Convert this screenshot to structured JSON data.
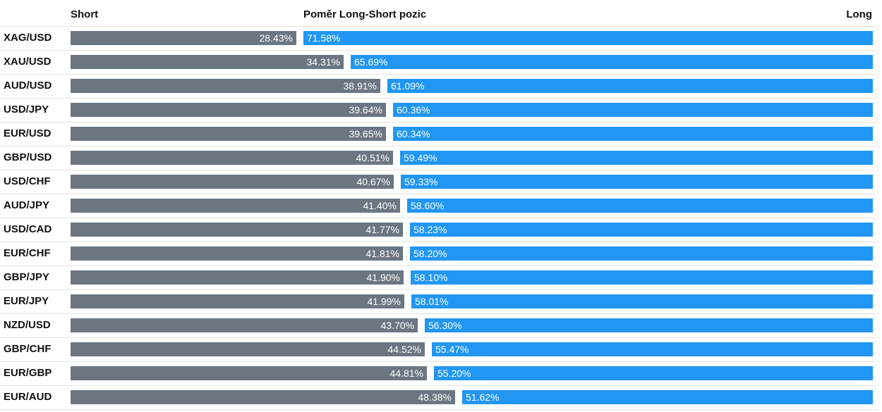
{
  "colors": {
    "short": "#6c7683",
    "long": "#2196f3"
  },
  "header": {
    "short_label": "Short",
    "title": "Poměr Long-Short pozic",
    "long_label": "Long"
  },
  "chart_data": {
    "type": "bar",
    "stacked": true,
    "orientation": "horizontal",
    "title": "Poměr Long-Short pozic",
    "categories": [
      "XAG/USD",
      "XAU/USD",
      "AUD/USD",
      "USD/JPY",
      "EUR/USD",
      "GBP/USD",
      "USD/CHF",
      "AUD/JPY",
      "USD/CAD",
      "EUR/CHF",
      "GBP/JPY",
      "EUR/JPY",
      "NZD/USD",
      "GBP/CHF",
      "EUR/GBP",
      "EUR/AUD"
    ],
    "series": [
      {
        "name": "Short",
        "values": [
          28.43,
          34.31,
          38.91,
          39.64,
          39.65,
          40.51,
          40.67,
          41.4,
          41.77,
          41.81,
          41.9,
          41.99,
          43.7,
          44.52,
          44.81,
          48.38
        ],
        "labels": [
          "28.43%",
          "34.31%",
          "38.91%",
          "39.64%",
          "39.65%",
          "40.51%",
          "40.67%",
          "41.40%",
          "41.77%",
          "41.81%",
          "41.90%",
          "41.99%",
          "43.70%",
          "44.52%",
          "44.81%",
          "48.38%"
        ]
      },
      {
        "name": "Long",
        "values": [
          71.58,
          65.69,
          61.09,
          60.36,
          60.34,
          59.49,
          59.33,
          58.6,
          58.23,
          58.2,
          58.1,
          58.01,
          56.3,
          55.47,
          55.2,
          51.62
        ],
        "labels": [
          "71.58%",
          "65.69%",
          "61.09%",
          "60.36%",
          "60.34%",
          "59.49%",
          "59.33%",
          "58.60%",
          "58.23%",
          "58.20%",
          "58.10%",
          "58.01%",
          "56.30%",
          "55.47%",
          "55.20%",
          "51.62%"
        ]
      }
    ],
    "xlim": [
      0,
      100
    ],
    "legend": "top",
    "grid": false
  }
}
